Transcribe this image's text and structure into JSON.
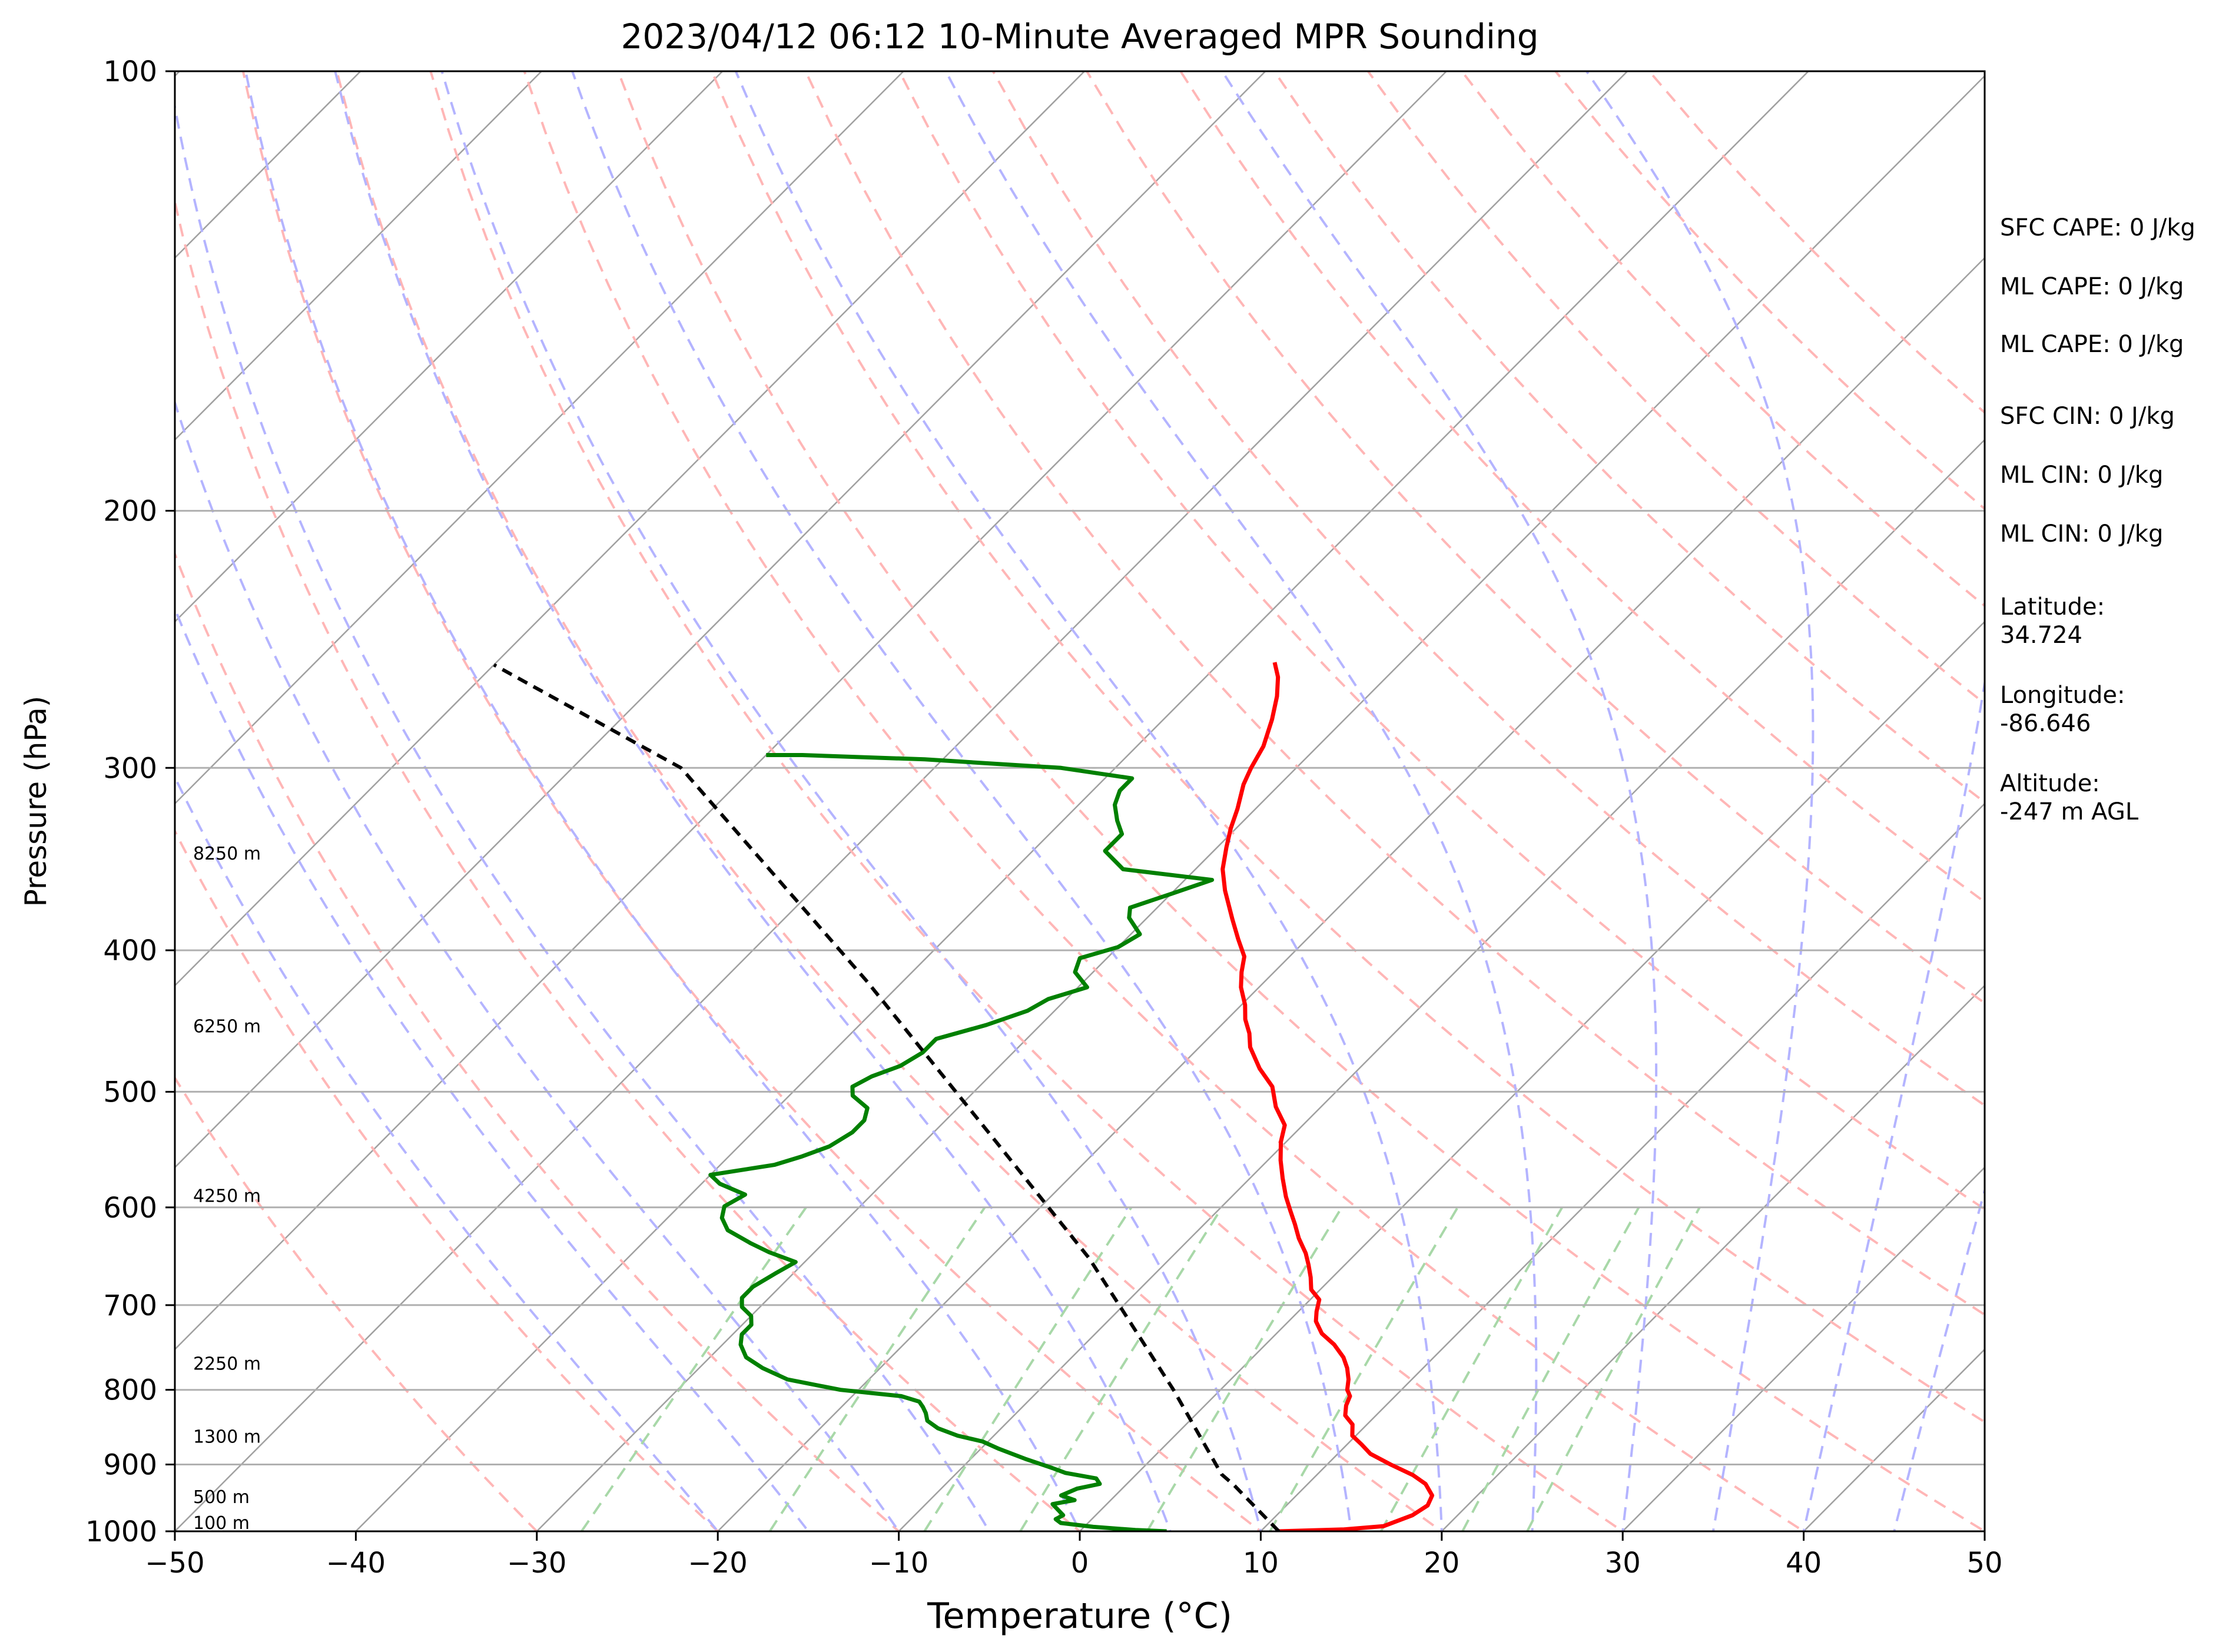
{
  "chart_data": {
    "type": "line",
    "title": "2023/04/12 06:12 10-Minute Averaged MPR Sounding",
    "xlabel": "Temperature (°C)",
    "ylabel": "Pressure (hPa)",
    "xlim": [
      -50,
      50
    ],
    "ylim": [
      1000,
      100
    ],
    "y_scale": "log",
    "x_ticks": [
      "−50",
      "−40",
      "−30",
      "−20",
      "−10",
      "0",
      "10",
      "20",
      "30",
      "40",
      "50"
    ],
    "x_tick_values": [
      -50,
      -40,
      -30,
      -20,
      -10,
      0,
      10,
      20,
      30,
      40,
      50
    ],
    "y_ticks": [
      "100",
      "200",
      "300",
      "400",
      "500",
      "600",
      "700",
      "800",
      "900",
      "1000"
    ],
    "y_tick_values": [
      100,
      200,
      300,
      400,
      500,
      600,
      700,
      800,
      900,
      1000
    ],
    "horizontal_grid": true,
    "colors": {
      "temperature": "#ff0000",
      "dewpoint": "#008000",
      "parcel": "#000000",
      "isotherm": "#a0a0a0",
      "dry_adiabat": "#ffb6b6",
      "moist_adiabat": "#b4b4ff",
      "mixing_ratio": "#a8d8a8"
    },
    "height_labels": [
      {
        "label": "8250 m",
        "p": 348
      },
      {
        "label": "6250 m",
        "p": 457
      },
      {
        "label": "4250 m",
        "p": 597
      },
      {
        "label": "2250 m",
        "p": 778
      },
      {
        "label": "1300 m",
        "p": 873
      },
      {
        "label": "500 m",
        "p": 960
      },
      {
        "label": "100 m",
        "p": 1000
      }
    ],
    "series": [
      {
        "key": "temperature",
        "values": [
          [
            11.0,
            1000
          ],
          [
            14.5,
            997
          ],
          [
            16.5,
            992
          ],
          [
            17.5,
            975
          ],
          [
            17.8,
            960
          ],
          [
            17.5,
            945
          ],
          [
            16.5,
            928
          ],
          [
            15.3,
            915
          ],
          [
            13.5,
            900
          ],
          [
            11.8,
            885
          ],
          [
            10.8,
            872
          ],
          [
            9.8,
            860
          ],
          [
            9.2,
            845
          ],
          [
            8.3,
            833
          ],
          [
            7.8,
            820
          ],
          [
            7.5,
            808
          ],
          [
            7.0,
            800
          ],
          [
            6.5,
            787
          ],
          [
            5.8,
            773
          ],
          [
            5.0,
            760
          ],
          [
            3.8,
            745
          ],
          [
            2.5,
            732
          ],
          [
            1.5,
            718
          ],
          [
            1.0,
            707
          ],
          [
            0.5,
            694
          ],
          [
            -0.5,
            683
          ],
          [
            -1.2,
            670
          ],
          [
            -2.0,
            657
          ],
          [
            -2.8,
            645
          ],
          [
            -4.0,
            630
          ],
          [
            -5.0,
            616
          ],
          [
            -6.0,
            603
          ],
          [
            -7.0,
            590
          ],
          [
            -8.2,
            573
          ],
          [
            -9.3,
            557
          ],
          [
            -10.3,
            541
          ],
          [
            -11.0,
            527
          ],
          [
            -12.5,
            512
          ],
          [
            -13.8,
            496
          ],
          [
            -15.5,
            482
          ],
          [
            -17.2,
            466
          ],
          [
            -18.0,
            456
          ],
          [
            -19.0,
            446
          ],
          [
            -19.8,
            436
          ],
          [
            -21.0,
            424
          ],
          [
            -21.8,
            414
          ],
          [
            -22.5,
            404
          ],
          [
            -23.8,
            393
          ],
          [
            -25.2,
            381
          ],
          [
            -27.2,
            364
          ],
          [
            -28.5,
            352
          ],
          [
            -29.5,
            340
          ],
          [
            -30.3,
            330
          ],
          [
            -31.0,
            320
          ],
          [
            -32.0,
            308
          ],
          [
            -32.5,
            300
          ],
          [
            -33.0,
            290
          ],
          [
            -34.0,
            278
          ],
          [
            -35.0,
            268
          ],
          [
            -36.0,
            260
          ],
          [
            -37.0,
            254
          ]
        ]
      },
      {
        "key": "dewpoint",
        "values": [
          [
            4.8,
            1000
          ],
          [
            3.0,
            998
          ],
          [
            0.5,
            993
          ],
          [
            -1.5,
            987
          ],
          [
            -2.0,
            981
          ],
          [
            -1.8,
            975
          ],
          [
            -2.5,
            965
          ],
          [
            -3.0,
            958
          ],
          [
            -2.0,
            952
          ],
          [
            -3.0,
            945
          ],
          [
            -2.5,
            935
          ],
          [
            -1.5,
            928
          ],
          [
            -2.0,
            920
          ],
          [
            -4.0,
            912
          ],
          [
            -5.0,
            905
          ],
          [
            -7.0,
            892
          ],
          [
            -9.0,
            878
          ],
          [
            -10.3,
            868
          ],
          [
            -12.0,
            860
          ],
          [
            -13.5,
            850
          ],
          [
            -14.5,
            840
          ],
          [
            -15.0,
            830
          ],
          [
            -15.5,
            822
          ],
          [
            -16.0,
            815
          ],
          [
            -17.3,
            808
          ],
          [
            -21.0,
            800
          ],
          [
            -24.5,
            787
          ],
          [
            -26.5,
            773
          ],
          [
            -28.0,
            760
          ],
          [
            -29.0,
            745
          ],
          [
            -29.5,
            733
          ],
          [
            -29.5,
            722
          ],
          [
            -30.0,
            712
          ],
          [
            -31.0,
            702
          ],
          [
            -31.5,
            692
          ],
          [
            -31.5,
            680
          ],
          [
            -31.0,
            666
          ],
          [
            -30.5,
            654
          ],
          [
            -32.5,
            644
          ],
          [
            -34.0,
            635
          ],
          [
            -36.0,
            622
          ],
          [
            -37.0,
            610
          ],
          [
            -37.5,
            599
          ],
          [
            -37.0,
            588
          ],
          [
            -39.0,
            578
          ],
          [
            -40.0,
            570
          ],
          [
            -37.0,
            561
          ],
          [
            -36.0,
            554
          ],
          [
            -35.0,
            545
          ],
          [
            -34.5,
            533
          ],
          [
            -34.5,
            523
          ],
          [
            -35.0,
            513
          ],
          [
            -36.5,
            503
          ],
          [
            -37.0,
            496
          ],
          [
            -36.5,
            488
          ],
          [
            -35.5,
            480
          ],
          [
            -35.0,
            470
          ],
          [
            -35.0,
            460
          ],
          [
            -33.0,
            450
          ],
          [
            -31.5,
            440
          ],
          [
            -31.0,
            432
          ],
          [
            -29.5,
            424
          ],
          [
            -31.0,
            414
          ],
          [
            -31.5,
            405
          ],
          [
            -30.0,
            398
          ],
          [
            -29.5,
            390
          ],
          [
            -31.0,
            380
          ],
          [
            -31.5,
            374
          ],
          [
            -30.0,
            366
          ],
          [
            -28.5,
            358
          ],
          [
            -34.0,
            352
          ],
          [
            -36.0,
            342
          ],
          [
            -36.0,
            333
          ],
          [
            -37.0,
            326
          ],
          [
            -38.0,
            318
          ],
          [
            -38.5,
            311
          ],
          [
            -38.5,
            305
          ],
          [
            -43.0,
            300
          ],
          [
            -51.0,
            296
          ],
          [
            -58.0,
            294
          ],
          [
            -60.0,
            294
          ]
        ]
      },
      {
        "key": "parcel",
        "values": [
          [
            11.0,
            1000
          ],
          [
            6.0,
            930
          ],
          [
            4.7,
            914
          ],
          [
            -2.6,
            800
          ],
          [
            -14.5,
            650
          ],
          [
            -25.0,
            550
          ],
          [
            -42.0,
            420
          ],
          [
            -64.0,
            300
          ],
          [
            -80.0,
            255
          ]
        ]
      }
    ],
    "isotherms": [
      -130,
      -120,
      -110,
      -100,
      -90,
      -80,
      -70,
      -60,
      -50,
      -40,
      -30,
      -20,
      -10,
      0,
      10,
      20,
      30,
      40,
      50
    ],
    "dry_adiabats_theta_c": [
      -30,
      -20,
      -10,
      0,
      10,
      20,
      30,
      40,
      50,
      60,
      70,
      80,
      90,
      100,
      110,
      120,
      130,
      140,
      150,
      160
    ],
    "moist_adiabats_t1000_c": [
      -20,
      -15,
      -10,
      -5,
      0,
      5,
      10,
      15,
      20,
      25,
      30,
      35,
      40,
      45
    ],
    "mixing_ratios_gkg": [
      0.4,
      1,
      2,
      3,
      5,
      8,
      12,
      16,
      20
    ]
  },
  "side_panel": [
    {
      "key": "sfc_cape",
      "lines": [
        "SFC CAPE: 0 J/kg"
      ]
    },
    {
      "key": "ml_cape_1",
      "lines": [
        "ML CAPE: 0 J/kg"
      ]
    },
    {
      "key": "ml_cape_2",
      "lines": [
        "ML CAPE: 0 J/kg"
      ]
    },
    {
      "key": "sfc_cin",
      "lines": [
        "SFC CIN: 0 J/kg"
      ]
    },
    {
      "key": "ml_cin_1",
      "lines": [
        "ML CIN: 0 J/kg"
      ]
    },
    {
      "key": "ml_cin_2",
      "lines": [
        "ML CIN: 0 J/kg"
      ]
    },
    {
      "key": "latitude",
      "lines": [
        "Latitude:",
        "34.724"
      ]
    },
    {
      "key": "longitude",
      "lines": [
        "Longitude:",
        "-86.646"
      ]
    },
    {
      "key": "altitude",
      "lines": [
        "Altitude:",
        "-247 m AGL"
      ]
    }
  ]
}
